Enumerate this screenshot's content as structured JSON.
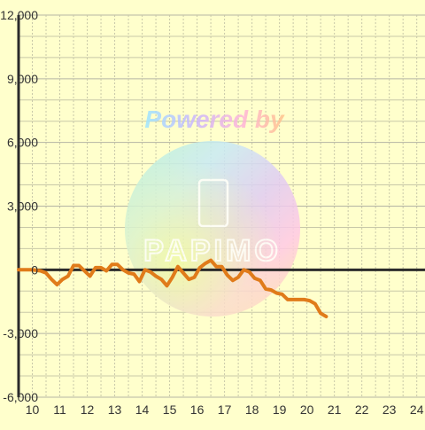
{
  "watermark": {
    "line1": "Powered by",
    "line2": "PAPIMO"
  },
  "colors": {
    "background": "#ffffcc",
    "grid_minor": "#c8c8a8",
    "grid_major": "#b4b4a4",
    "axis": "#2b2b2b",
    "line": "#e07b1a",
    "text": "#333333"
  },
  "chart_data": {
    "type": "line",
    "title": "",
    "xlabel": "",
    "ylabel": "",
    "xlim": [
      9.5,
      24.3
    ],
    "ylim": [
      -6000,
      12000
    ],
    "x_ticks": [
      10,
      11,
      12,
      13,
      14,
      15,
      16,
      17,
      18,
      19,
      20,
      21,
      22,
      23,
      24
    ],
    "y_ticks": [
      12000,
      9000,
      6000,
      3000,
      0,
      -3000,
      -6000
    ],
    "x_tick_labels": [
      "10",
      "11",
      "12",
      "13",
      "14",
      "15",
      "16",
      "17",
      "18",
      "19",
      "20",
      "21",
      "22",
      "23",
      "24"
    ],
    "y_tick_labels": [
      "12,000",
      "9,000",
      "6,000",
      "3,000",
      "0",
      "-3,000",
      "-6,000"
    ],
    "grid": true,
    "legend": "none",
    "series": [
      {
        "color": "#e07b1a",
        "points": [
          [
            9.5,
            0
          ],
          [
            10.0,
            0
          ],
          [
            10.3,
            -50
          ],
          [
            10.5,
            -150
          ],
          [
            10.7,
            -450
          ],
          [
            10.9,
            -700
          ],
          [
            11.1,
            -450
          ],
          [
            11.3,
            -300
          ],
          [
            11.5,
            200
          ],
          [
            11.7,
            200
          ],
          [
            11.9,
            -50
          ],
          [
            12.1,
            -300
          ],
          [
            12.3,
            100
          ],
          [
            12.5,
            100
          ],
          [
            12.7,
            -50
          ],
          [
            12.9,
            250
          ],
          [
            13.1,
            250
          ],
          [
            13.3,
            0
          ],
          [
            13.5,
            -150
          ],
          [
            13.7,
            -200
          ],
          [
            13.9,
            -550
          ],
          [
            14.1,
            0
          ],
          [
            14.3,
            -100
          ],
          [
            14.5,
            -300
          ],
          [
            14.7,
            -450
          ],
          [
            14.9,
            -750
          ],
          [
            15.1,
            -350
          ],
          [
            15.3,
            150
          ],
          [
            15.5,
            -150
          ],
          [
            15.7,
            -450
          ],
          [
            15.9,
            -350
          ],
          [
            16.1,
            100
          ],
          [
            16.3,
            300
          ],
          [
            16.5,
            450
          ],
          [
            16.7,
            150
          ],
          [
            16.9,
            150
          ],
          [
            17.1,
            -250
          ],
          [
            17.3,
            -500
          ],
          [
            17.5,
            -350
          ],
          [
            17.7,
            0
          ],
          [
            17.9,
            -100
          ],
          [
            18.1,
            -400
          ],
          [
            18.3,
            -500
          ],
          [
            18.5,
            -900
          ],
          [
            18.7,
            -950
          ],
          [
            18.9,
            -1100
          ],
          [
            19.1,
            -1150
          ],
          [
            19.3,
            -1400
          ],
          [
            19.5,
            -1400
          ],
          [
            19.7,
            -1400
          ],
          [
            19.9,
            -1400
          ],
          [
            20.1,
            -1450
          ],
          [
            20.3,
            -1600
          ],
          [
            20.5,
            -2050
          ],
          [
            20.7,
            -2200
          ]
        ]
      }
    ]
  }
}
